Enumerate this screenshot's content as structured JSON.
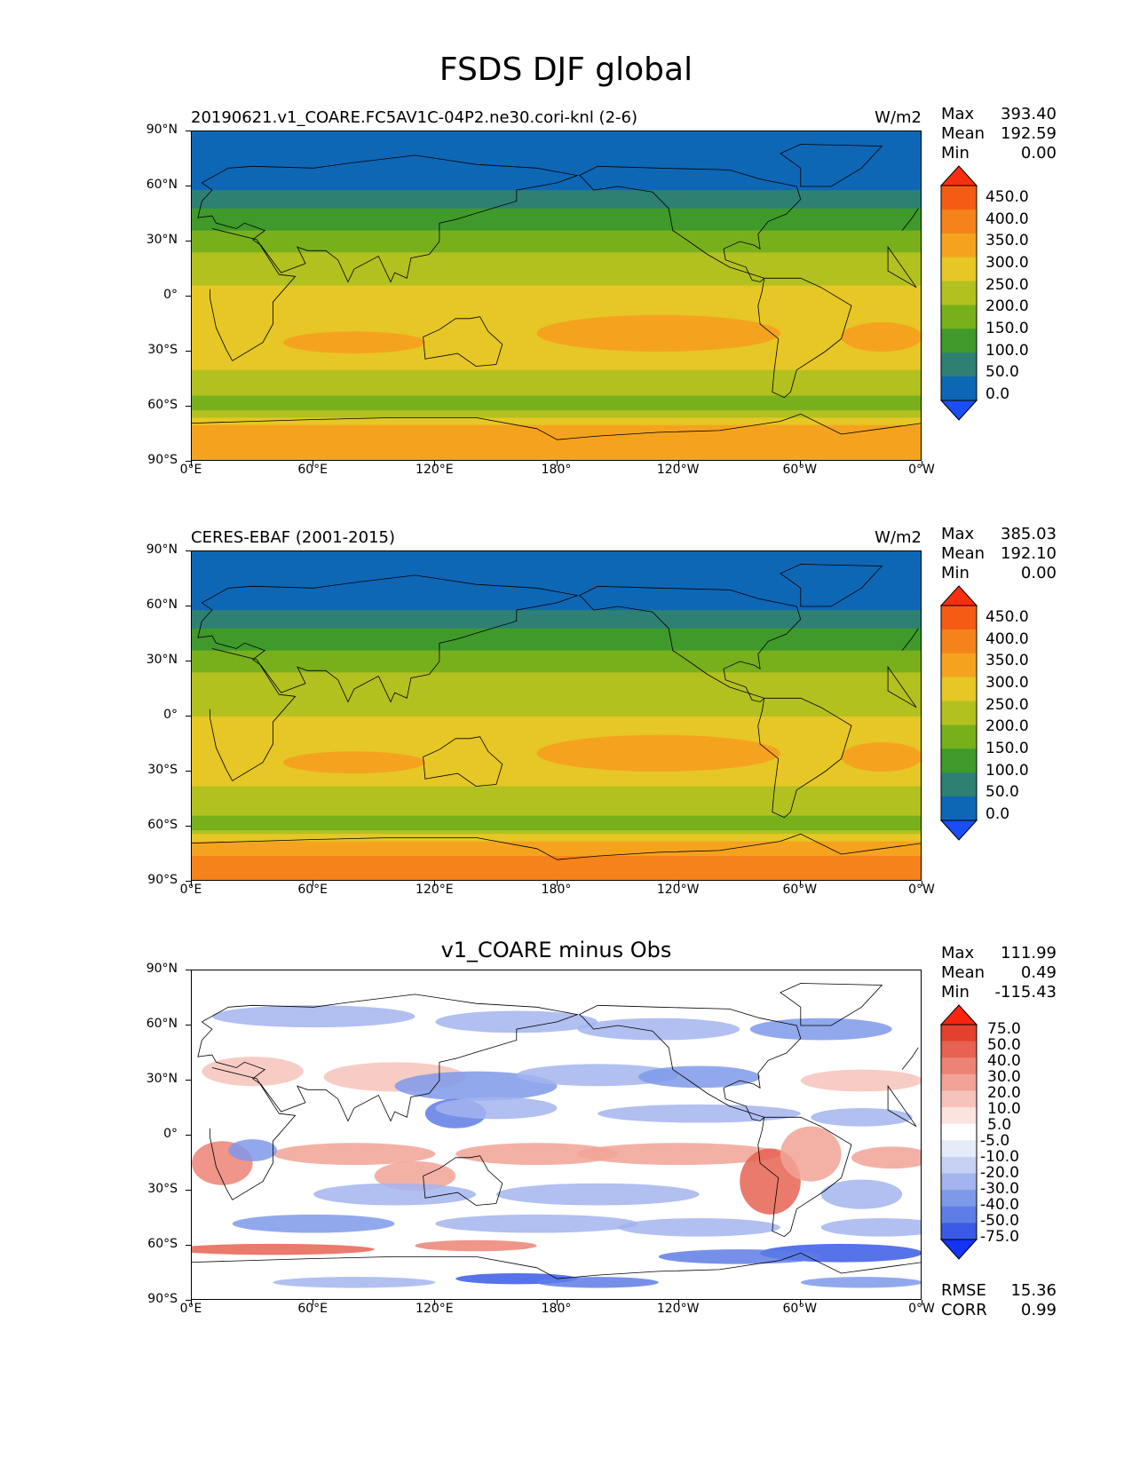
{
  "title": "FSDS DJF global",
  "xticks": [
    "0°E",
    "60°E",
    "120°E",
    "180°",
    "120°W",
    "60°W",
    "0°W"
  ],
  "yticks": [
    "90°N",
    "60°N",
    "30°N",
    "0°",
    "30°S",
    "60°S",
    "90°S"
  ],
  "panels": [
    {
      "title": "20190621.v1_COARE.FC5AV1C-04P2.ne30.cori-knl (2-6)",
      "units": "W/m2",
      "stats": {
        "max_label": "Max",
        "max": "393.40",
        "mean_label": "Mean",
        "mean": "192.59",
        "min_label": "Min",
        "min": "0.00"
      }
    },
    {
      "title": "CERES-EBAF (2001-2015)",
      "units": "W/m2",
      "stats": {
        "max_label": "Max",
        "max": "385.03",
        "mean_label": "Mean",
        "mean": "192.10",
        "min_label": "Min",
        "min": "0.00"
      }
    },
    {
      "title": "v1_COARE minus Obs",
      "units": "",
      "stats": {
        "max_label": "Max",
        "max": "111.99",
        "mean_label": "Mean",
        "mean": "0.49",
        "min_label": "Min",
        "min": "-115.43"
      },
      "rmse_label": "RMSE",
      "rmse": "15.36",
      "corr_label": "CORR",
      "corr": "0.99"
    }
  ],
  "chart_data": [
    {
      "type": "heatmap",
      "title": "20190621.v1_COARE.FC5AV1C-04P2.ne30.cori-knl (2-6)",
      "units": "W/m2",
      "x_range": [
        "0°E",
        "0°W"
      ],
      "y_range": [
        "90°S",
        "90°N"
      ],
      "colorbar_levels": [
        0,
        50,
        100,
        150,
        200,
        250,
        300,
        350,
        400,
        450
      ],
      "colorbar_labels": [
        "450.0",
        "400.0",
        "350.0",
        "300.0",
        "250.0",
        "200.0",
        "150.0",
        "100.0",
        "50.0",
        "0.0"
      ],
      "colors": [
        "#1a4df5",
        "#0e67b5",
        "#2e8073",
        "#3f9a2b",
        "#78b01c",
        "#b2c11f",
        "#e6c726",
        "#f5a31f",
        "#f5821a",
        "#f55b14",
        "#fa2f0f"
      ],
      "zonal_mean_profile": [
        {
          "lat": 90,
          "value": 0
        },
        {
          "lat": 75,
          "value": 20
        },
        {
          "lat": 60,
          "value": 45
        },
        {
          "lat": 45,
          "value": 110
        },
        {
          "lat": 30,
          "value": 180
        },
        {
          "lat": 15,
          "value": 230
        },
        {
          "lat": 0,
          "value": 260
        },
        {
          "lat": -15,
          "value": 275
        },
        {
          "lat": -30,
          "value": 280
        },
        {
          "lat": -45,
          "value": 230
        },
        {
          "lat": -60,
          "value": 180
        },
        {
          "lat": -70,
          "value": 300
        },
        {
          "lat": -80,
          "value": 350
        },
        {
          "lat": -90,
          "value": 340
        }
      ]
    },
    {
      "type": "heatmap",
      "title": "CERES-EBAF (2001-2015)",
      "units": "W/m2",
      "x_range": [
        "0°E",
        "0°W"
      ],
      "y_range": [
        "90°S",
        "90°N"
      ],
      "colorbar_levels": [
        0,
        50,
        100,
        150,
        200,
        250,
        300,
        350,
        400,
        450
      ],
      "colorbar_labels": [
        "450.0",
        "400.0",
        "350.0",
        "300.0",
        "250.0",
        "200.0",
        "150.0",
        "100.0",
        "50.0",
        "0.0"
      ],
      "colors": [
        "#1a4df5",
        "#0e67b5",
        "#2e8073",
        "#3f9a2b",
        "#78b01c",
        "#b2c11f",
        "#e6c726",
        "#f5a31f",
        "#f5821a",
        "#f55b14",
        "#fa2f0f"
      ],
      "zonal_mean_profile": [
        {
          "lat": 90,
          "value": 0
        },
        {
          "lat": 75,
          "value": 20
        },
        {
          "lat": 60,
          "value": 45
        },
        {
          "lat": 45,
          "value": 110
        },
        {
          "lat": 30,
          "value": 175
        },
        {
          "lat": 15,
          "value": 230
        },
        {
          "lat": 0,
          "value": 250
        },
        {
          "lat": -15,
          "value": 270
        },
        {
          "lat": -30,
          "value": 275
        },
        {
          "lat": -45,
          "value": 230
        },
        {
          "lat": -60,
          "value": 180
        },
        {
          "lat": -70,
          "value": 330
        },
        {
          "lat": -80,
          "value": 360
        },
        {
          "lat": -90,
          "value": 350
        }
      ]
    },
    {
      "type": "heatmap",
      "title": "v1_COARE minus Obs",
      "x_range": [
        "0°E",
        "0°W"
      ],
      "y_range": [
        "90°S",
        "90°N"
      ],
      "colorbar_levels": [
        -75,
        -50,
        -40,
        -30,
        -20,
        -10,
        -5,
        5,
        10,
        20,
        30,
        40,
        50,
        75
      ],
      "colorbar_labels": [
        "75.0",
        "50.0",
        "40.0",
        "30.0",
        "20.0",
        "10.0",
        "5.0",
        "-5.0",
        "-10.0",
        "-20.0",
        "-30.0",
        "-40.0",
        "-50.0",
        "-75.0"
      ],
      "colors": [
        "#1433f5",
        "#3a5ae6",
        "#5e7de6",
        "#7f99ea",
        "#a3b4ee",
        "#c7d1f3",
        "#e6ebfa",
        "#ffffff",
        "#fbe4e0",
        "#f6c3bb",
        "#f1a397",
        "#ec8374",
        "#e66352",
        "#e3402e",
        "#fa2410"
      ]
    }
  ]
}
